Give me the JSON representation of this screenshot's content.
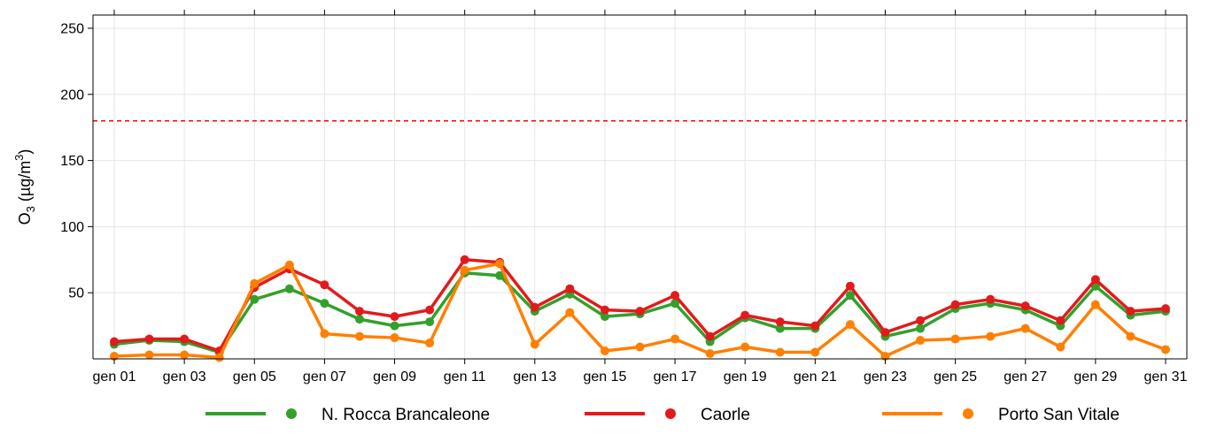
{
  "chart_data": {
    "type": "line",
    "title": "",
    "xlabel": "",
    "ylabel": {
      "base": "O",
      "sub": "3",
      "unit_open": " (µg/m",
      "sup": "3",
      "unit_close": ")"
    },
    "ylim": [
      0,
      260
    ],
    "yticks": [
      50,
      100,
      150,
      200,
      250
    ],
    "x": [
      1,
      2,
      3,
      4,
      5,
      6,
      7,
      8,
      9,
      10,
      11,
      12,
      13,
      14,
      15,
      16,
      17,
      18,
      19,
      20,
      21,
      22,
      23,
      24,
      25,
      26,
      27,
      28,
      29,
      30,
      31
    ],
    "xlim": [
      1,
      31
    ],
    "xticks": [
      {
        "day": 1,
        "label": "gen 01"
      },
      {
        "day": 3,
        "label": "gen 03"
      },
      {
        "day": 5,
        "label": "gen 05"
      },
      {
        "day": 7,
        "label": "gen 07"
      },
      {
        "day": 9,
        "label": "gen 09"
      },
      {
        "day": 11,
        "label": "gen 11"
      },
      {
        "day": 13,
        "label": "gen 13"
      },
      {
        "day": 15,
        "label": "gen 15"
      },
      {
        "day": 17,
        "label": "gen 17"
      },
      {
        "day": 19,
        "label": "gen 19"
      },
      {
        "day": 21,
        "label": "gen 21"
      },
      {
        "day": 23,
        "label": "gen 23"
      },
      {
        "day": 25,
        "label": "gen 25"
      },
      {
        "day": 27,
        "label": "gen 27"
      },
      {
        "day": 29,
        "label": "gen 29"
      },
      {
        "day": 31,
        "label": "gen 31"
      }
    ],
    "grid": true,
    "threshold": {
      "value": 180,
      "color": "#ff0000",
      "style": "dashed"
    },
    "legend_position": "bottom",
    "series": [
      {
        "name": "N. Rocca Brancaleone",
        "color": "#33a02c",
        "values": [
          11,
          14,
          13,
          5,
          45,
          53,
          42,
          30,
          25,
          28,
          65,
          63,
          36,
          49,
          32,
          34,
          42,
          13,
          31,
          23,
          23,
          48,
          17,
          23,
          38,
          42,
          37,
          25,
          55,
          33,
          36
        ]
      },
      {
        "name": "Caorle",
        "color": "#e31a1c",
        "values": [
          13,
          15,
          15,
          6,
          54,
          68,
          56,
          36,
          32,
          37,
          75,
          73,
          39,
          53,
          37,
          36,
          48,
          17,
          33,
          28,
          25,
          55,
          20,
          29,
          41,
          45,
          40,
          29,
          60,
          36,
          38
        ]
      },
      {
        "name": "Porto San Vitale",
        "color": "#ff7f00",
        "values": [
          2,
          3,
          3,
          1,
          57,
          71,
          19,
          17,
          16,
          12,
          67,
          72,
          11,
          35,
          6,
          9,
          15,
          4,
          9,
          5,
          5,
          26,
          2,
          14,
          15,
          17,
          23,
          9,
          41,
          17,
          7
        ]
      }
    ]
  }
}
